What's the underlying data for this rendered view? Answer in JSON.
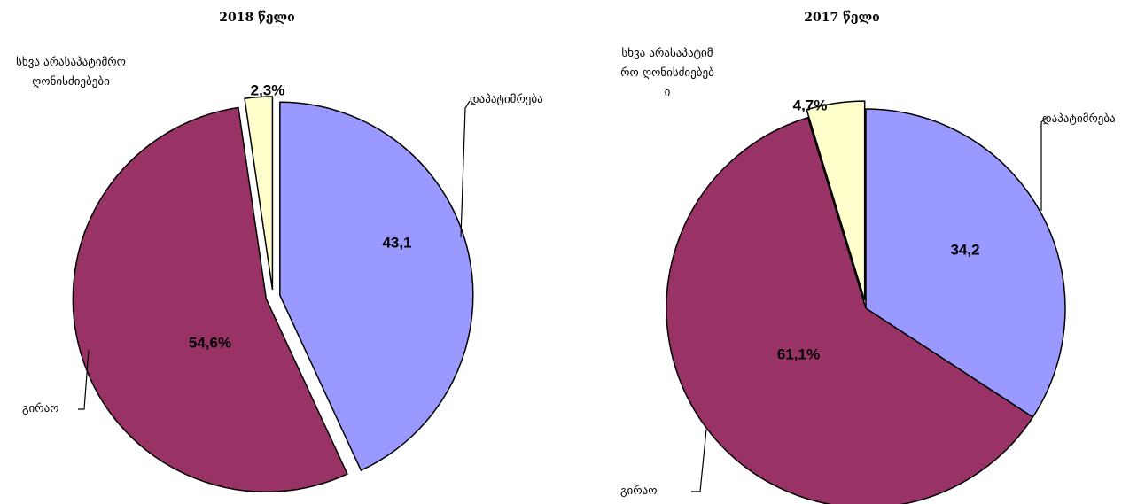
{
  "chart_data": [
    {
      "type": "pie",
      "title": "2018 წელი",
      "categories": [
        "დაპატიმრება",
        "გირაო",
        "სხვა არასაპატიმრო ღონისძიებები"
      ],
      "values": [
        43.1,
        54.6,
        2.3
      ],
      "value_labels": [
        "43,1",
        "54,6%",
        "2,3%"
      ],
      "colors": [
        "#9999ff",
        "#993366",
        "#ffffcc"
      ]
    },
    {
      "type": "pie",
      "title": "2017 წელი",
      "categories": [
        "დაპატიმრება",
        "გირაო",
        "სხვა არასაპატიმრო ღონისძიებები"
      ],
      "values": [
        34.2,
        61.1,
        4.7
      ],
      "value_labels": [
        "34,2",
        "61,1%",
        "4,7%"
      ],
      "colors": [
        "#9999ff",
        "#993366",
        "#ffffcc"
      ]
    }
  ]
}
